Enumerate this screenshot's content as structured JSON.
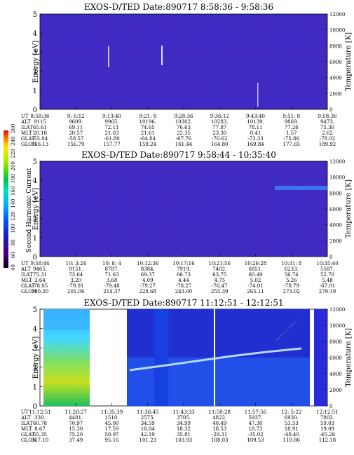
{
  "chart_data": [
    {
      "type": "heatmap",
      "title": "EXOS-D/TED   Date:890717   8:58:36 - 9:58:36",
      "ylabel": "Energy [eV]",
      "y2label": "Temperature [K]",
      "ylim": [
        0,
        5
      ],
      "y2lim": [
        0,
        12000
      ],
      "yticks": [
        "0",
        "1",
        "2",
        "3",
        "4",
        "5"
      ],
      "y2ticks": [
        "0",
        "2000",
        "4000",
        "6000",
        "8000",
        "10000",
        "12000"
      ],
      "row_labels": [
        "UT",
        "ALT",
        "ILAT",
        "MLT",
        "GLAT",
        "GLON"
      ],
      "columns": [
        [
          "8:58:36",
          "9115",
          "65.61",
          "20.18",
          "-55.04",
          "156.13"
        ],
        [
          "9: 6:12",
          "9609.",
          "69.11",
          "20.57",
          "-58.57",
          "156.79"
        ],
        [
          "9:13:40",
          "9965.",
          "72.11",
          "21.03",
          "-61.80",
          "157.77"
        ],
        [
          "9:21: 8",
          "10196.",
          "74.65",
          "21.61",
          "-64.84",
          "159.24"
        ],
        [
          "9:28:36",
          "10302.",
          "76.63",
          "22.35",
          "-67.76",
          "161.44"
        ],
        [
          "9:36:12",
          "10283.",
          "77.87",
          "23.30",
          "-70.62",
          "164.80"
        ],
        [
          "9:43:40",
          "10139.",
          "78.11",
          "0.41",
          "-73.33",
          "169.84"
        ],
        [
          "9:51: 8",
          "9869.",
          "77.26",
          "1.57",
          "-75.86",
          "177.65"
        ],
        [
          "9:58:36",
          "9473.",
          "75.36",
          "2.62",
          "-78.02",
          "189.92"
        ]
      ]
    },
    {
      "type": "heatmap",
      "title": "EXOS-D/TED   Date:890717   9:58:44 - 10:35:40",
      "ylabel": "Energy [eV]",
      "y2label": "Temperature [K]",
      "ylim": [
        0,
        5
      ],
      "y2lim": [
        0,
        12000
      ],
      "yticks": [
        "0",
        "1",
        "2",
        "3",
        "4",
        "5"
      ],
      "y2ticks": [
        "0",
        "2000",
        "4000",
        "6000",
        "8000",
        "10000",
        "12000"
      ],
      "row_labels": [
        "UT",
        "ALT",
        "ILAT",
        "MLT",
        "GLAT",
        "GLON"
      ],
      "columns": [
        [
          "9:58:44",
          "9465.",
          "75.31",
          "2.64",
          "-78.05",
          "190.20"
        ],
        [
          "10: 3:24",
          "9151.",
          "73.64",
          "3.20",
          "-79.01",
          "201.06"
        ],
        [
          "10: 8: 4",
          "8787.",
          "71.63",
          "3.68",
          "-79.48",
          "214.37"
        ],
        [
          "10:12:36",
          "8384.",
          "69.37",
          "4.09",
          "-79.27",
          "228.68"
        ],
        [
          "10:17:16",
          "7919.",
          "66.73",
          "4.44",
          "-78.27",
          "243.00"
        ],
        [
          "10:21:56",
          "7402.",
          "63.75",
          "4.75",
          "-76.47",
          "255.39"
        ],
        [
          "10:26:28",
          "6851.",
          "60.49",
          "5.02",
          "-74.01",
          "265.11"
        ],
        [
          "10:31: 8",
          "6233.",
          "56.74",
          "5.26",
          "-70.79",
          "273.02"
        ],
        [
          "10:35:40",
          "5587.",
          "52.70",
          "5.48",
          "-67.01",
          "279.19"
        ]
      ]
    },
    {
      "type": "heatmap",
      "title": "EXOS-D/TED   Date:890717   11:12:51 - 12:12:51",
      "ylabel": "Energy [eV]",
      "y2label": "Temperature [K]",
      "ylim": [
        0,
        5
      ],
      "y2lim": [
        0,
        12000
      ],
      "yticks": [
        "0",
        "1",
        "2",
        "3",
        "4",
        "5"
      ],
      "y2ticks": [
        "0",
        "2000",
        "4000",
        "6000",
        "8000",
        "10000",
        "12000"
      ],
      "row_labels": [
        "UT",
        "ALT",
        "ILAT",
        "MLT",
        "GLAT",
        "GLON"
      ],
      "columns": [
        [
          "11:12:51",
          "330.",
          "60.78",
          "8.67",
          "55.35",
          "317.10"
        ],
        [
          "11:20:27",
          "4481.",
          "70.97",
          "15.30",
          "75.20",
          "37.49"
        ],
        [
          "11:35:39",
          "1510.",
          "45.00",
          "17.59",
          "50.97",
          "95.16"
        ],
        [
          "11:36:45",
          "2575.",
          "34.59",
          "18.04",
          "42.19",
          "101.23"
        ],
        [
          "11:43:33",
          "3705.",
          "34.99",
          "18.32",
          "35.81",
          "103.93"
        ],
        [
          "11:50:28",
          "4822.",
          "40.49",
          "18.53",
          "-29.31",
          "108.03"
        ],
        [
          "11:57:56",
          "5937.",
          "47.30",
          "18.73",
          "-35.02",
          "109.53"
        ],
        [
          "12: 5:22",
          "6930.",
          "53.53",
          "18.91",
          "-40.40",
          "110.86"
        ],
        [
          "12:12:51",
          "7802.",
          "59.03",
          "19.09",
          "-45.26",
          "112.18"
        ]
      ]
    }
  ],
  "colorbar": {
    "label": "Second Harmonic Current",
    "ticks": [
      "40",
      "60",
      "80",
      "100",
      "120",
      "140",
      "160",
      "180",
      "200",
      "220",
      "240",
      "260"
    ],
    "colors": [
      "#000000",
      "#4a0080",
      "#1a1ab4",
      "#0050ff",
      "#00b0ff",
      "#00e0c0",
      "#00c050",
      "#60e000",
      "#c0f000",
      "#ffe000",
      "#ff8000",
      "#ff0000"
    ]
  }
}
